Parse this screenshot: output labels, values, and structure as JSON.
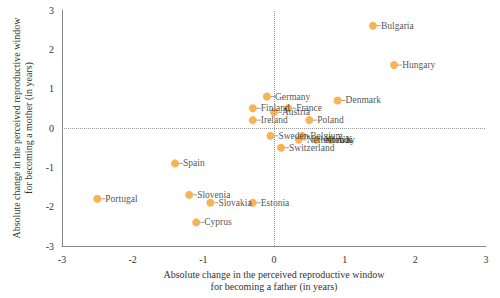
{
  "chart_data": {
    "type": "scatter",
    "x_label": "Absolute change in the perceived reproductive window\nfor becoming a father (in years)",
    "y_label": "Absolute change in the perceived reproductive window\nfor becoming a mother (in years)",
    "names": [
      "Bulgaria",
      "Hungary",
      "Denmark",
      "Finland",
      "Germany",
      "France",
      "Austria",
      "Ireland",
      "Poland",
      "Sweden",
      "Belgium",
      "Norway",
      "UK",
      "Switzerland",
      "Netherlands",
      "Spain",
      "Portugal",
      "Slovenia",
      "Slovakia",
      "Estonia",
      "Cyprus"
    ],
    "x": [
      1.4,
      1.7,
      0.9,
      -0.3,
      -0.1,
      0.2,
      0.0,
      -0.3,
      0.5,
      -0.05,
      0.4,
      0.6,
      0.8,
      0.1,
      0.35,
      -1.4,
      -2.5,
      -1.2,
      -0.9,
      -0.3,
      -1.1
    ],
    "y": [
      2.6,
      1.6,
      0.7,
      0.5,
      0.8,
      0.5,
      0.4,
      0.2,
      0.2,
      -0.2,
      -0.2,
      -0.3,
      -0.3,
      -0.5,
      -0.3,
      -0.9,
      -1.8,
      -1.7,
      -1.9,
      -1.9,
      -2.4
    ],
    "color": "#f4a12a",
    "xlim": [
      -3,
      3
    ],
    "ylim": [
      -3,
      3
    ],
    "xticks": [
      -3,
      -2,
      -1,
      0,
      1,
      2,
      3
    ],
    "yticks": [
      -3,
      -2,
      -1,
      0,
      1,
      2,
      3
    ],
    "grid": false
  }
}
